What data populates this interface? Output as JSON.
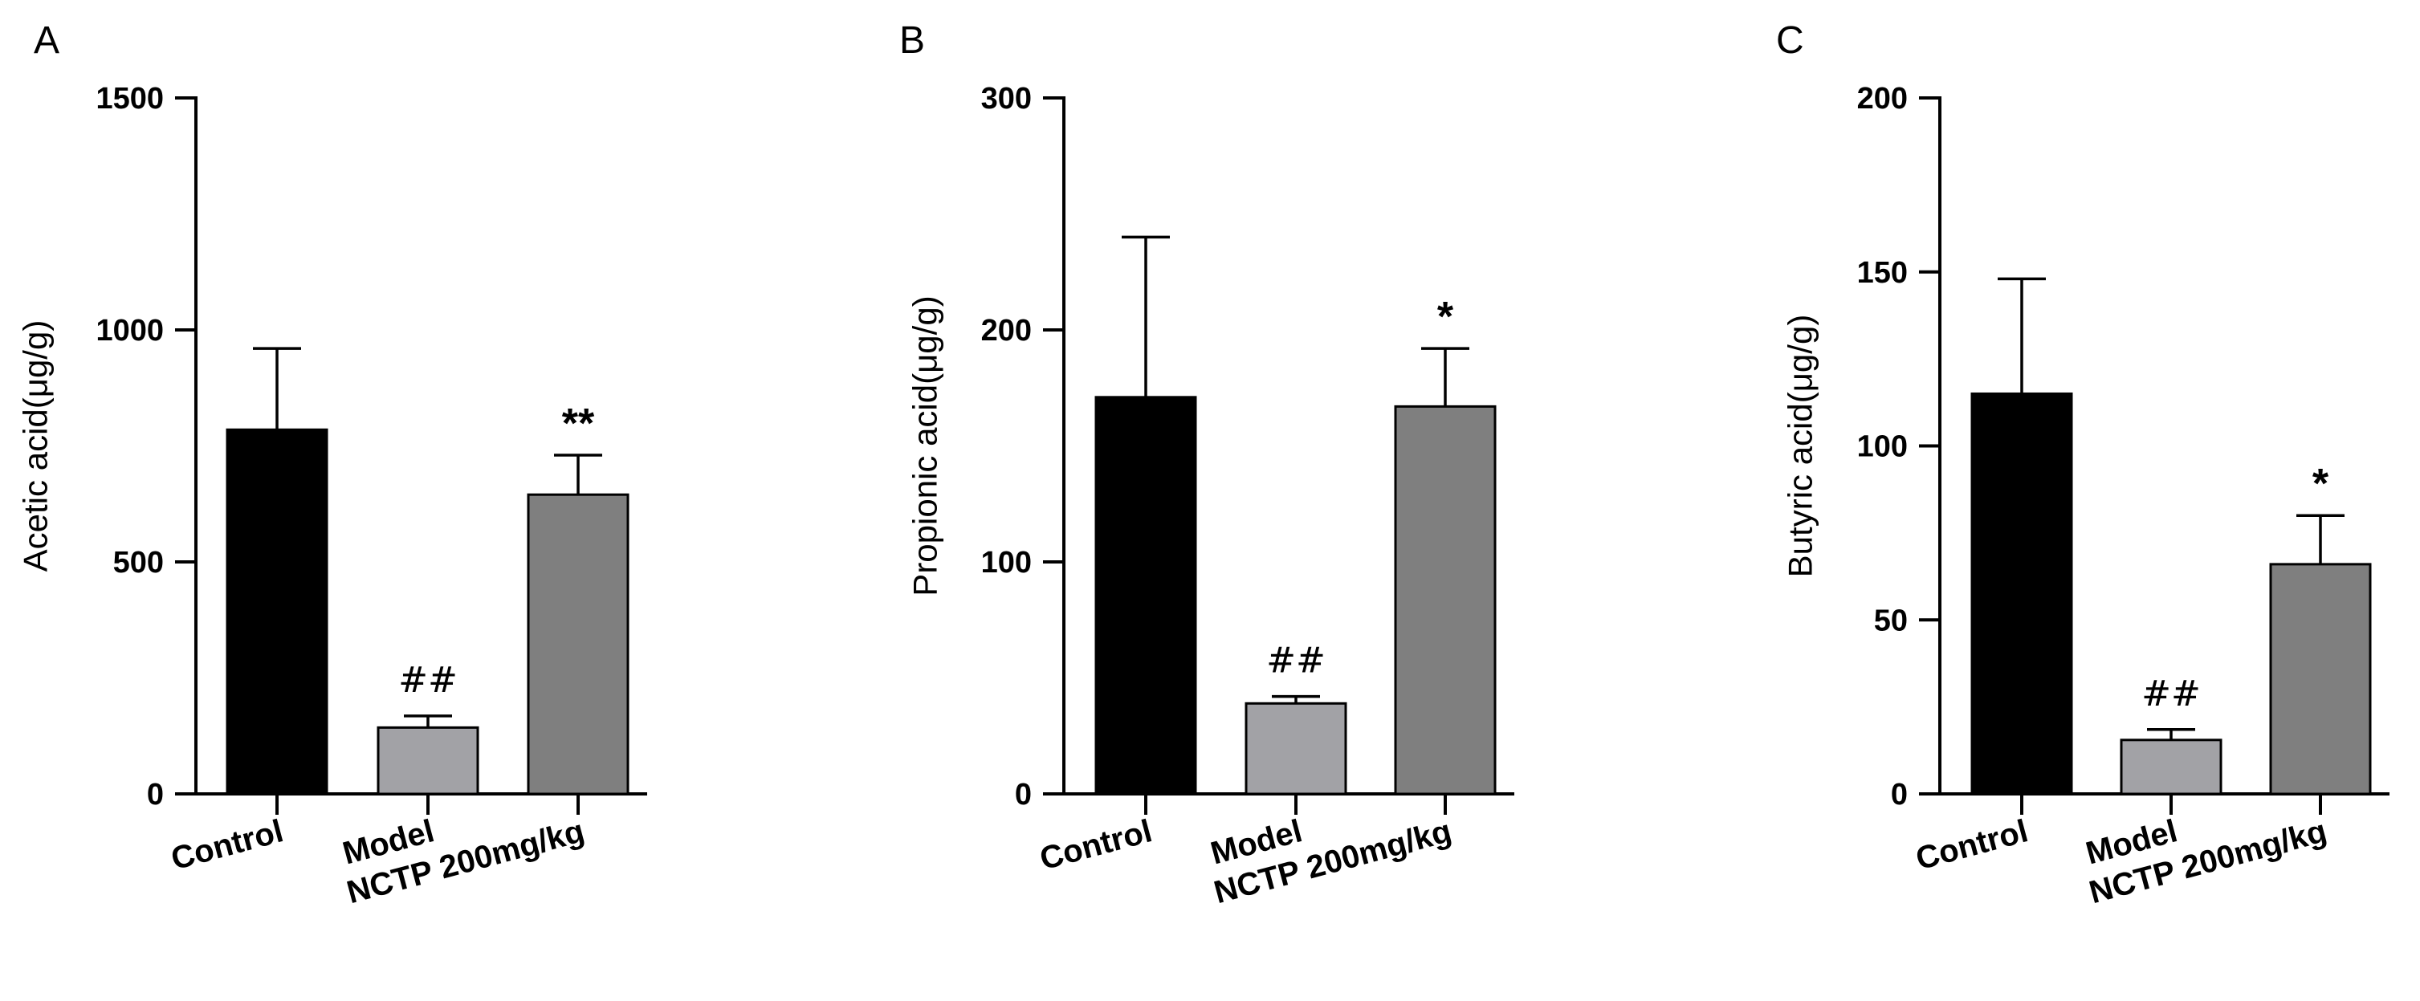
{
  "chart_data": [
    {
      "type": "bar",
      "panel": "A",
      "ylabel": "Acetic acid(μg/g)",
      "ylim": [
        0,
        1500
      ],
      "yticks": [
        0,
        500,
        1000,
        1500
      ],
      "categories": [
        "Control",
        "Model",
        "NCTP 200mg/kg"
      ],
      "values": [
        785,
        143,
        645
      ],
      "errors": [
        175,
        25,
        85
      ],
      "colors": [
        "#000000",
        "#a2a2a6",
        "#7f7f7f"
      ],
      "annotations": [
        "",
        "##",
        "**"
      ]
    },
    {
      "type": "bar",
      "panel": "B",
      "ylabel": "Propionic acid(μg/g)",
      "ylim": [
        0,
        300
      ],
      "yticks": [
        0,
        100,
        200,
        300
      ],
      "categories": [
        "Control",
        "Model",
        "NCTP 200mg/kg"
      ],
      "values": [
        171,
        39,
        167
      ],
      "errors": [
        69,
        3,
        25
      ],
      "colors": [
        "#000000",
        "#a2a2a6",
        "#7f7f7f"
      ],
      "annotations": [
        "",
        "##",
        "*"
      ]
    },
    {
      "type": "bar",
      "panel": "C",
      "ylabel": "Butyric acid(μg/g)",
      "ylim": [
        0,
        200
      ],
      "yticks": [
        0,
        50,
        100,
        150,
        200
      ],
      "categories": [
        "Control",
        "Model",
        "NCTP 200mg/kg"
      ],
      "values": [
        115,
        15.5,
        66
      ],
      "errors": [
        33,
        3,
        14
      ],
      "colors": [
        "#000000",
        "#a2a2a6",
        "#7f7f7f"
      ],
      "annotations": [
        "",
        "##",
        "*"
      ]
    }
  ]
}
